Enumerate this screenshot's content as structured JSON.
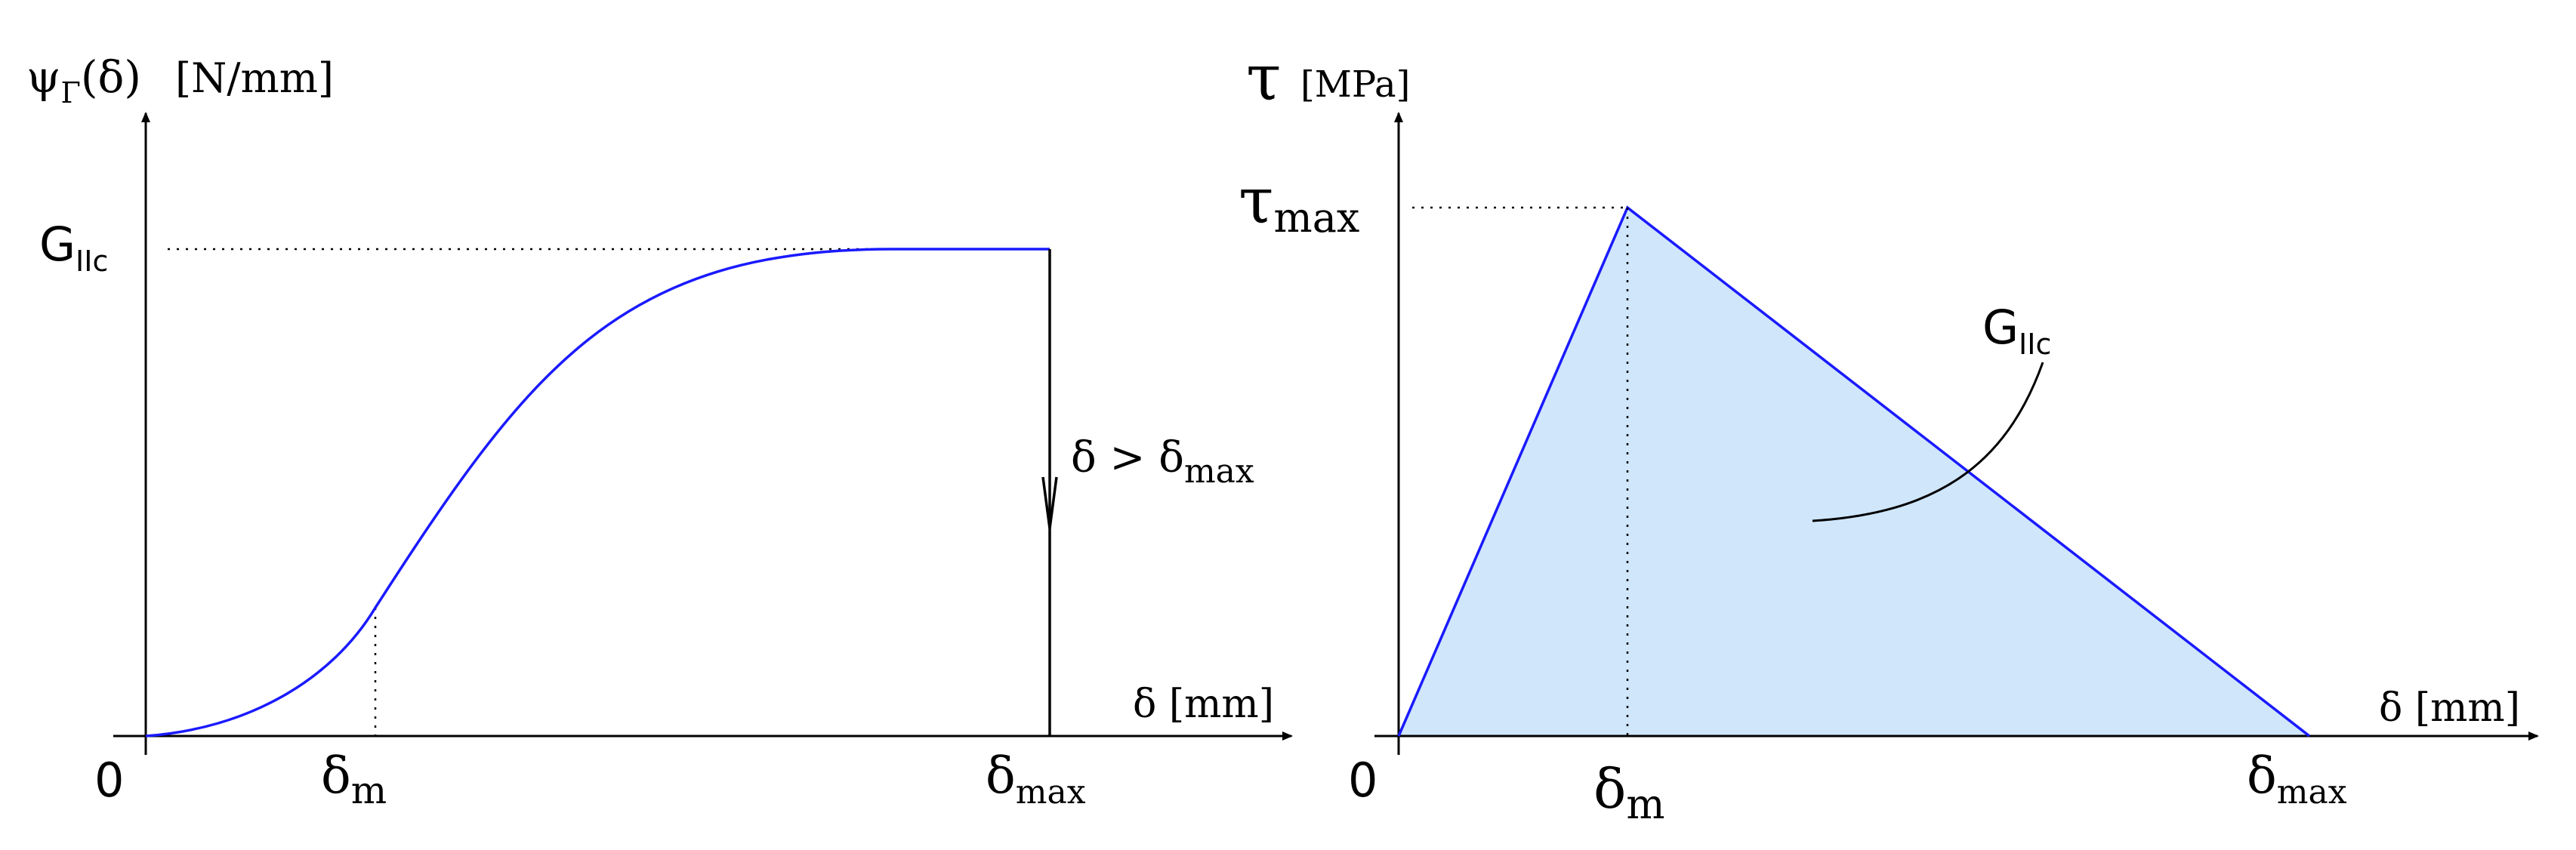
{
  "left_diagram": {
    "y_axis_label": "ψ",
    "y_axis_label_sub": "Γ",
    "y_axis_label_arg": "(δ)",
    "y_axis_unit": "[N/mm]",
    "x_axis_label": "δ [mm]",
    "origin_label": "0",
    "g_label": "G",
    "g_label_sub": "IIc",
    "delta_m": "δ",
    "delta_m_sub": "m",
    "delta_max": "δ",
    "delta_max_sub": "max",
    "condition": "δ > δ",
    "condition_sub": "max"
  },
  "right_diagram": {
    "y_axis_label": "τ",
    "y_axis_unit": "[MPa]",
    "tau_max": "τ",
    "tau_max_sub": "max",
    "x_axis_label": "δ [mm]",
    "origin_label": "0",
    "delta_m": "δ",
    "delta_m_sub": "m",
    "delta_max": "δ",
    "delta_max_sub": "max",
    "area_label": "G",
    "area_label_sub": "IIc"
  },
  "colors": {
    "curve": "#1a1aff",
    "area_fill": "#cfe6fb"
  }
}
